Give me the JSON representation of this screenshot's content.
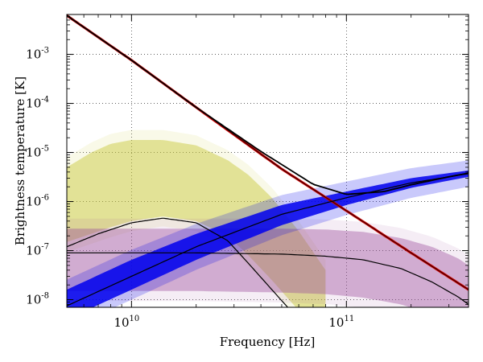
{
  "chart_data": {
    "type": "line",
    "xlabel": "Frequency [Hz]",
    "ylabel": "Brightness temperature [K]",
    "xscale": "log",
    "yscale": "log",
    "xlim": [
      5000000000.0,
      370000000000.0
    ],
    "ylim": [
      7e-09,
      0.0065
    ],
    "grid": true,
    "x_ticks": [
      {
        "base": "10",
        "exp": "10",
        "value": 10000000000.0
      },
      {
        "base": "10",
        "exp": "11",
        "value": 100000000000.0
      }
    ],
    "y_ticks": [
      {
        "base": "10",
        "exp": "-3",
        "value": 0.001
      },
      {
        "base": "10",
        "exp": "-4",
        "value": 0.0001
      },
      {
        "base": "10",
        "exp": "-5",
        "value": 1e-05
      },
      {
        "base": "10",
        "exp": "-6",
        "value": 1e-06
      },
      {
        "base": "10",
        "exp": "-7",
        "value": 1e-07
      },
      {
        "base": "10",
        "exp": "-8",
        "value": 1e-08
      }
    ],
    "colors": {
      "total": "#000000",
      "steep_powerlaw": "#cc0000",
      "rising_powerlaw_band": "#0000ee",
      "yellow_band": "#c8c832",
      "purple_band": "#9b4a9b",
      "model_lines": "#000000"
    },
    "series": [
      {
        "x": [
          5000000000.0,
          10000000000.0,
          20000000000.0,
          50000000000.0,
          100000000000.0,
          200000000000.0,
          370000000000.0
        ],
        "y": [
          0.0062,
          0.00076,
          8.3e-05,
          4.6e-06,
          6.5e-07,
          9e-08,
          1.6e-08
        ]
      },
      {
        "x": [
          5000000000.0,
          10000000000.0,
          20000000000.0,
          40000000000.0,
          70000000000.0,
          100000000000.0,
          150000000000.0,
          200000000000.0,
          300000000000.0,
          370000000000.0
        ],
        "y": [
          0.0062,
          0.00076,
          8.3e-05,
          1.05e-05,
          2.25e-06,
          1.4e-06,
          1.6e-06,
          2.2e-06,
          3.2e-06,
          3.8e-06
        ]
      },
      {
        "x": [
          5000000000.0,
          10000000000.0,
          20000000000.0,
          50000000000.0,
          100000000000.0,
          200000000000.0,
          370000000000.0
        ],
        "y": [
          7.5e-09,
          3e-08,
          1.2e-07,
          5.5e-07,
          1.2e-06,
          2.4e-06,
          3.7e-06
        ]
      },
      {
        "x": [
          5000000000.0,
          7000000000.0,
          10000000000.0,
          14000000000.0,
          20000000000.0,
          28000000000.0,
          35000000000.0,
          45000000000.0,
          55000000000.0
        ],
        "y": [
          1.2e-07,
          2.2e-07,
          3.7e-07,
          4.6e-07,
          3.7e-07,
          1.6e-07,
          5.5e-08,
          1.6e-08,
          6e-09
        ]
      },
      {
        "x": [
          5000000000.0,
          10000000000.0,
          20000000000.0,
          50000000000.0,
          80000000000.0,
          120000000000.0,
          180000000000.0,
          250000000000.0,
          330000000000.0,
          370000000000.0
        ],
        "y": [
          9e-08,
          9e-08,
          9e-08,
          8.5e-08,
          7.7e-08,
          6.5e-08,
          4.3e-08,
          2.3e-08,
          1.15e-08,
          8e-09
        ]
      }
    ],
    "bands": [
      {
        "x": [
          5000000000.0,
          10000000000.0,
          20000000000.0,
          50000000000.0,
          100000000000.0,
          200000000000.0,
          370000000000.0
        ],
        "y_low": [
          4e-09,
          1.6e-08,
          6.5e-08,
          3.3e-07,
          8.5e-07,
          1.9e-06,
          3.2e-06
        ],
        "y_high": [
          1.6e-08,
          6.5e-08,
          2.2e-07,
          8.5e-07,
          1.6e-06,
          3e-06,
          4.3e-06
        ]
      },
      {
        "x": [
          5000000000.0,
          6500000000.0,
          8000000000.0,
          10000000000.0,
          14000000000.0,
          20000000000.0,
          28000000000.0,
          35000000000.0,
          45000000000.0,
          60000000000.0,
          80000000000.0
        ],
        "y_low": [
          1.5e-07,
          2.2e-07,
          3e-07,
          4e-07,
          5e-07,
          4e-07,
          2e-07,
          8e-08,
          2.5e-08,
          6e-09,
          2e-09
        ],
        "y_high": [
          5e-06,
          1e-05,
          1.5e-05,
          1.8e-05,
          1.8e-05,
          1.4e-05,
          7e-06,
          3.5e-06,
          1.2e-06,
          2.5e-07,
          4e-08
        ]
      },
      {
        "x": [
          5000000000.0,
          10000000000.0,
          20000000000.0,
          50000000000.0,
          80000000000.0,
          120000000000.0,
          180000000000.0,
          250000000000.0,
          330000000000.0,
          370000000000.0
        ],
        "y_low": [
          1.5e-08,
          1.5e-08,
          1.5e-08,
          1.4e-08,
          1.3e-08,
          1.1e-08,
          8e-09,
          5e-09,
          3e-09,
          2e-09
        ],
        "y_high": [
          2.8e-07,
          2.8e-07,
          2.8e-07,
          2.8e-07,
          2.7e-07,
          2.4e-07,
          1.8e-07,
          1.2e-07,
          7e-08,
          5e-08
        ]
      }
    ]
  }
}
